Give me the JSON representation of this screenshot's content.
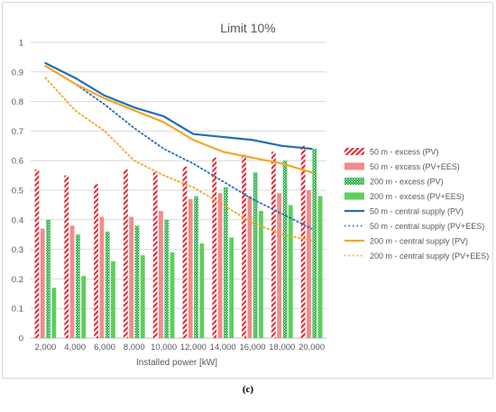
{
  "caption": "(c)",
  "chart_data": {
    "type": "bar",
    "title": "Limit 10%",
    "xlabel": "Installed power [kW]",
    "ylabel": "",
    "ylim": [
      0,
      1
    ],
    "yticks": [
      "0",
      "0.1",
      "0.2",
      "0.3",
      "0.4",
      "0.5",
      "0.6",
      "0.7",
      "0.8",
      "0.9",
      "1"
    ],
    "grid": true,
    "legend_position": "right",
    "categories": [
      "2,000",
      "4,000",
      "6,000",
      "8,000",
      "10,000",
      "12,000",
      "14,000",
      "16,000",
      "18,000",
      "20,000"
    ],
    "series": [
      {
        "name": "50 m - excess (PV)",
        "kind": "bar",
        "pattern": "red-hatch",
        "color": "#e8242e",
        "values": [
          0.57,
          0.55,
          0.52,
          0.57,
          0.56,
          0.58,
          0.61,
          0.62,
          0.63,
          0.65
        ]
      },
      {
        "name": "50 m - excess (PV+EES)",
        "kind": "bar",
        "pattern": "solid",
        "color": "#f28b8b",
        "values": [
          0.37,
          0.38,
          0.41,
          0.41,
          0.43,
          0.47,
          0.49,
          0.48,
          0.49,
          0.5
        ]
      },
      {
        "name": "200 m - excess (PV)",
        "kind": "bar",
        "pattern": "green-dots",
        "color": "#2db34a",
        "values": [
          0.4,
          0.35,
          0.36,
          0.38,
          0.4,
          0.48,
          0.51,
          0.56,
          0.6,
          0.64
        ]
      },
      {
        "name": "200 m - excess (PV+EES)",
        "kind": "bar",
        "pattern": "solid",
        "color": "#5ecf5a",
        "values": [
          0.17,
          0.21,
          0.26,
          0.28,
          0.29,
          0.32,
          0.34,
          0.43,
          0.45,
          0.48
        ]
      },
      {
        "name": "50 m - central supply (PV)",
        "kind": "line",
        "dash": "solid",
        "color": "#1f6fb8",
        "values": [
          0.93,
          0.88,
          0.82,
          0.78,
          0.75,
          0.69,
          0.68,
          0.67,
          0.65,
          0.64
        ]
      },
      {
        "name": "50 m - central supply (PV+EES)",
        "kind": "line",
        "dash": "dotted",
        "color": "#1f6fb8",
        "values": [
          0.92,
          0.86,
          0.79,
          0.71,
          0.64,
          0.59,
          0.53,
          0.47,
          0.42,
          0.37
        ]
      },
      {
        "name": "200 m - central supply  (PV)",
        "kind": "line",
        "dash": "solid",
        "color": "#f5a623",
        "values": [
          0.92,
          0.86,
          0.81,
          0.77,
          0.73,
          0.67,
          0.63,
          0.61,
          0.59,
          0.56
        ]
      },
      {
        "name": "200 m - central supply (PV+EES)",
        "kind": "line",
        "dash": "dotted",
        "color": "#f5a623",
        "values": [
          0.88,
          0.77,
          0.7,
          0.6,
          0.55,
          0.51,
          0.45,
          0.39,
          0.35,
          0.33
        ]
      }
    ]
  }
}
